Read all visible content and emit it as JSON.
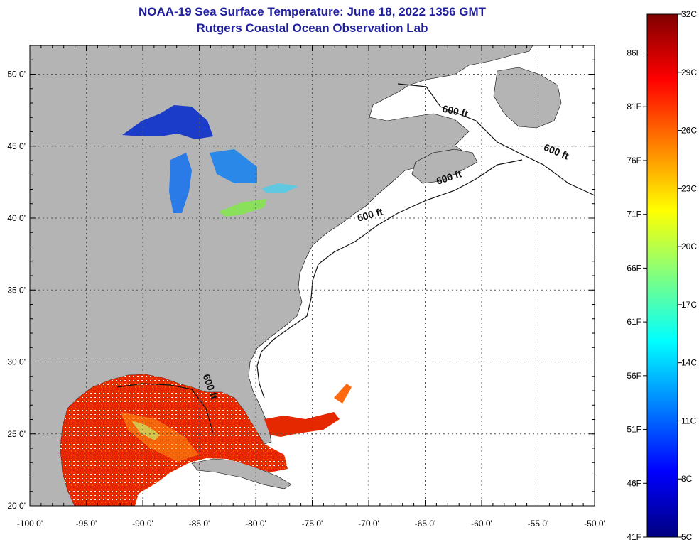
{
  "title": {
    "line1": "NOAA-19 Sea Surface Temperature:  June 18, 2022 1356 GMT",
    "line2": "Rutgers Coastal Ocean Observation Lab"
  },
  "colors": {
    "land": "#b4b4b4",
    "ocean_no_data": "#ffffff",
    "grid": "#555555",
    "contour": "#111111"
  },
  "map": {
    "lon_range": [
      -100,
      -50
    ],
    "lat_range": [
      20,
      52
    ],
    "lon_ticks": [
      {
        "value": -100,
        "label": "-100 0'"
      },
      {
        "value": -95,
        "label": "-95 0'"
      },
      {
        "value": -90,
        "label": "-90 0'"
      },
      {
        "value": -85,
        "label": "-85 0'"
      },
      {
        "value": -80,
        "label": "-80 0'"
      },
      {
        "value": -75,
        "label": "-75 0'"
      },
      {
        "value": -70,
        "label": "-70 0'"
      },
      {
        "value": -65,
        "label": "-65 0'"
      },
      {
        "value": -60,
        "label": "-60 0'"
      },
      {
        "value": -55,
        "label": "-55 0'"
      },
      {
        "value": -50,
        "label": "-50 0'"
      }
    ],
    "lat_ticks": [
      {
        "value": 50,
        "label": "50 0'"
      },
      {
        "value": 45,
        "label": "45 0'"
      },
      {
        "value": 40,
        "label": "40 0'"
      },
      {
        "value": 35,
        "label": "35 0'"
      },
      {
        "value": 30,
        "label": "30 0'"
      },
      {
        "value": 25,
        "label": "25 0'"
      },
      {
        "value": 20,
        "label": "20 0'"
      }
    ],
    "contour_labels": [
      {
        "text": "600 ft",
        "lon": -62.4,
        "lat": 47.2,
        "angle": 12
      },
      {
        "text": "600 ft",
        "lon": -53.5,
        "lat": 44.4,
        "angle": 22
      },
      {
        "text": "600 ft",
        "lon": -62.8,
        "lat": 42.6,
        "angle": -18
      },
      {
        "text": "600 ft",
        "lon": -69.8,
        "lat": 40.0,
        "angle": -15
      },
      {
        "text": "600 ft",
        "lon": -84.3,
        "lat": 28.2,
        "angle": 70
      }
    ]
  },
  "colorbar": {
    "celsius_labels": [
      {
        "value": 32,
        "label": "32C"
      },
      {
        "value": 29,
        "label": "29C"
      },
      {
        "value": 26,
        "label": "26C"
      },
      {
        "value": 23,
        "label": "23C"
      },
      {
        "value": 20,
        "label": "20C"
      },
      {
        "value": 17,
        "label": "17C"
      },
      {
        "value": 14,
        "label": "14C"
      },
      {
        "value": 11,
        "label": "11C"
      },
      {
        "value": 8,
        "label": "8C"
      },
      {
        "value": 5,
        "label": "5C"
      }
    ],
    "fahrenheit_labels": [
      {
        "value": 86,
        "label": "86F"
      },
      {
        "value": 81,
        "label": "81F"
      },
      {
        "value": 76,
        "label": "76F"
      },
      {
        "value": 71,
        "label": "71F"
      },
      {
        "value": 66,
        "label": "66F"
      },
      {
        "value": 61,
        "label": "61F"
      },
      {
        "value": 56,
        "label": "56F"
      },
      {
        "value": 51,
        "label": "51F"
      },
      {
        "value": 46,
        "label": "46F"
      },
      {
        "value": 41,
        "label": "41F"
      }
    ],
    "gradient_stops": [
      "#000080",
      "#0000ff",
      "#0080ff",
      "#00ffff",
      "#80ff80",
      "#ffff00",
      "#ff8000",
      "#ff0000",
      "#800000"
    ]
  }
}
